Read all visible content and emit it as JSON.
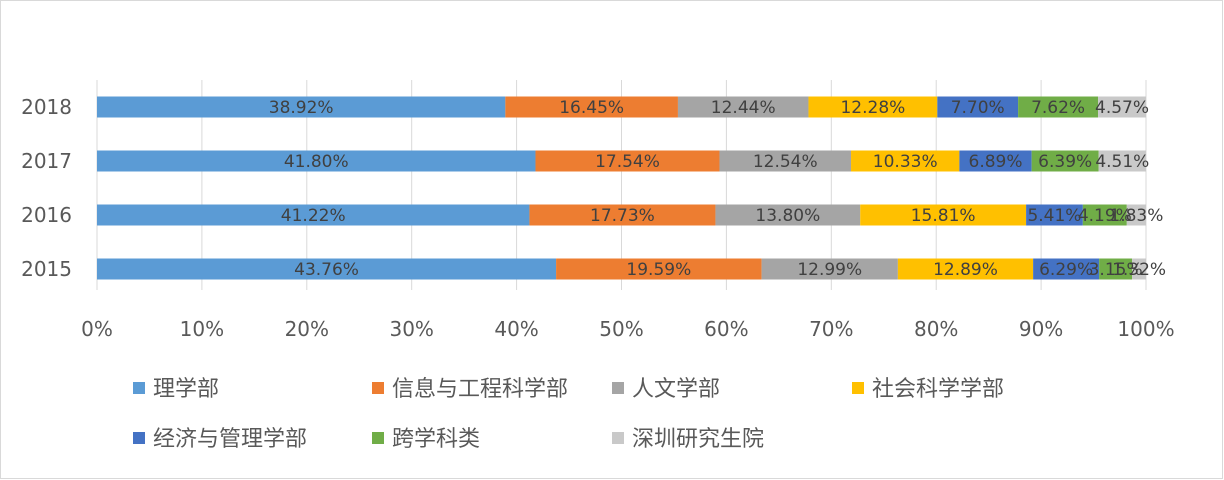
{
  "chart_data": {
    "type": "bar",
    "orientation": "horizontal",
    "stacked": "percent",
    "categories": [
      "2015",
      "2016",
      "2017",
      "2018"
    ],
    "series": [
      {
        "name": "理学部",
        "color": "#5b9bd5",
        "values": [
          43.76,
          41.22,
          41.8,
          38.92
        ],
        "labels": [
          "43.76%",
          "41.22%",
          "41.80%",
          "38.92%"
        ]
      },
      {
        "name": "信息与工程科学部",
        "color": "#ed7d31",
        "values": [
          19.59,
          17.73,
          17.54,
          16.45
        ],
        "labels": [
          "19.59%",
          "17.73%",
          "17.54%",
          "16.45%"
        ]
      },
      {
        "name": "人文学部",
        "color": "#a5a5a5",
        "values": [
          12.99,
          13.8,
          12.54,
          12.44
        ],
        "labels": [
          "12.99%",
          "13.80%",
          "12.54%",
          "12.44%"
        ]
      },
      {
        "name": "社会科学学部",
        "color": "#ffc000",
        "values": [
          12.89,
          15.81,
          10.33,
          12.28
        ],
        "labels": [
          "12.89%",
          "15.81%",
          "10.33%",
          "12.28%"
        ]
      },
      {
        "name": "经济与管理学部",
        "color": "#4472c4",
        "values": [
          6.29,
          5.41,
          6.89,
          7.7
        ],
        "labels": [
          "6.29%",
          "5.41%",
          "6.89%",
          "7.70%"
        ]
      },
      {
        "name": "跨学科类",
        "color": "#70ad47",
        "values": [
          3.15,
          4.19,
          6.39,
          7.62
        ],
        "labels": [
          "3.15%",
          "4.19%",
          "6.39%",
          "7.62%"
        ]
      },
      {
        "name": "深圳研究生院",
        "color": "#c9c9c9",
        "values": [
          1.32,
          1.83,
          4.51,
          4.57
        ],
        "labels": [
          "1.32%",
          "1.83%",
          "4.51%",
          "4.57%"
        ]
      }
    ],
    "xticks": [
      "0%",
      "10%",
      "20%",
      "30%",
      "40%",
      "50%",
      "60%",
      "70%",
      "80%",
      "90%",
      "100%"
    ],
    "xlim": [
      0,
      100
    ],
    "grid": true,
    "legend_position": "bottom",
    "title": "",
    "xlabel": "",
    "ylabel": ""
  }
}
